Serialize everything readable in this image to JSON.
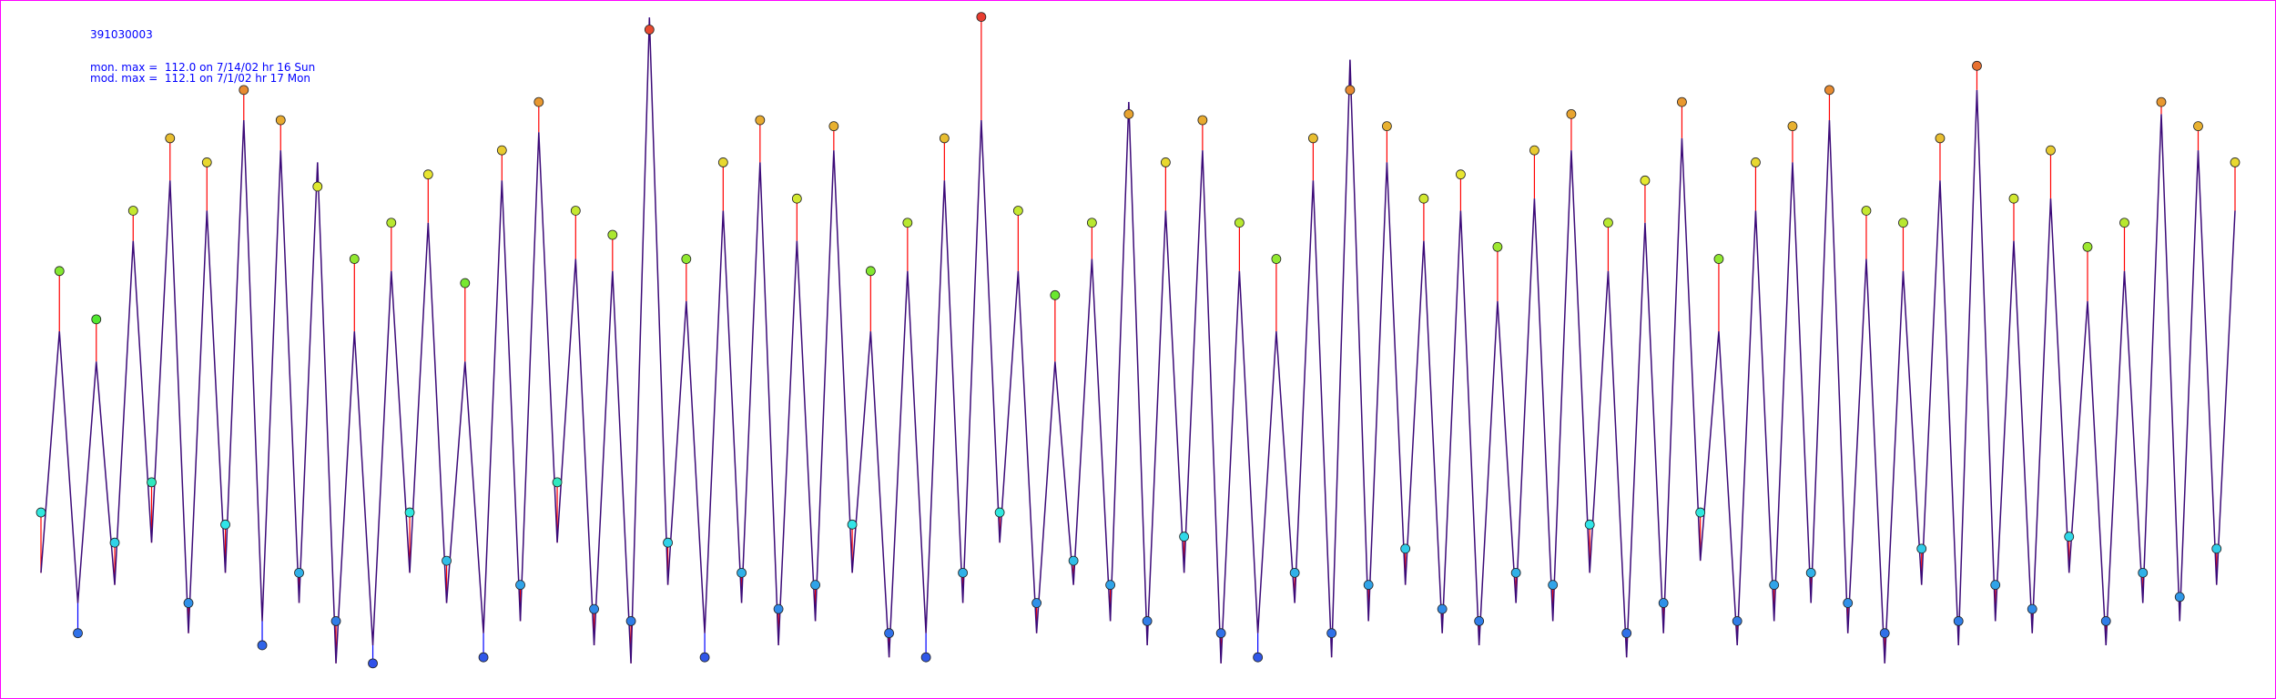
{
  "chart_data": {
    "type": "line",
    "annotations": [
      "391030003",
      "mon. max =  112.0 on 7/14/02 hr 16 Sun",
      "mod. max =  112.1 on 7/1/02 hr 17 Mon"
    ],
    "ylim": [
      0,
      114
    ],
    "overpredict_color": "#ff0000",
    "underpredict_color": "#0000ff",
    "series": [
      {
        "color": "#3c0a78",
        "values": [
          20,
          60,
          15,
          55,
          18,
          75,
          25,
          85,
          10,
          80,
          20,
          95,
          12,
          90,
          15,
          88,
          5,
          60,
          8,
          70,
          20,
          78,
          15,
          55,
          10,
          85,
          12,
          93,
          25,
          72,
          8,
          70,
          5,
          112,
          18,
          65,
          10,
          80,
          15,
          88,
          8,
          75,
          12,
          90,
          20,
          60,
          6,
          70,
          10,
          85,
          15,
          95,
          25,
          70,
          10,
          55,
          18,
          72,
          12,
          98,
          8,
          80,
          20,
          90,
          5,
          70,
          10,
          60,
          15,
          85,
          6,
          105,
          12,
          88,
          18,
          75,
          10,
          80,
          8,
          65,
          15,
          82,
          12,
          90,
          20,
          70,
          6,
          78,
          10,
          92,
          22,
          60,
          8,
          80,
          12,
          88,
          15,
          95,
          10,
          72,
          5,
          70,
          18,
          85,
          8,
          100,
          12,
          75,
          10,
          82,
          20,
          65,
          8,
          70,
          15,
          96,
          12,
          90,
          18,
          80
        ]
      },
      {
        "color": "#ff0000",
        "values": [
          30,
          70,
          10,
          62,
          25,
          80,
          35,
          92,
          15,
          88,
          28,
          100,
          8,
          95,
          20,
          84,
          12,
          72,
          5,
          78,
          30,
          86,
          22,
          68,
          6,
          90,
          18,
          98,
          35,
          80,
          14,
          76,
          12,
          110,
          25,
          72,
          6,
          88,
          20,
          95,
          14,
          82,
          18,
          94,
          28,
          70,
          10,
          78,
          6,
          92,
          20,
          112.1,
          30,
          80,
          15,
          66,
          22,
          78,
          18,
          96,
          12,
          88,
          26,
          95,
          10,
          78,
          6,
          72,
          20,
          92,
          10,
          100,
          18,
          94,
          24,
          82,
          14,
          86,
          12,
          74,
          20,
          90,
          18,
          96,
          28,
          78,
          10,
          85,
          15,
          98,
          30,
          72,
          12,
          88,
          18,
          94,
          20,
          100,
          15,
          80,
          10,
          78,
          24,
          92,
          12,
          104,
          18,
          82,
          14,
          90,
          26,
          74,
          12,
          78,
          20,
          98,
          16,
          94,
          24,
          88
        ]
      }
    ]
  }
}
